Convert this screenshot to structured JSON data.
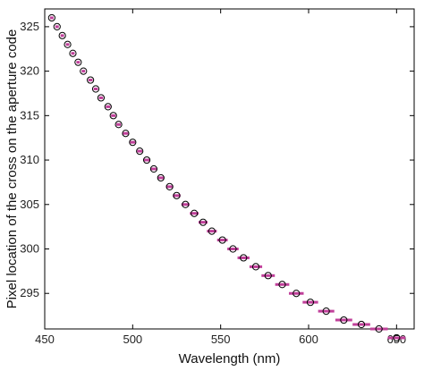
{
  "chart_data": {
    "type": "scatter",
    "xlabel": "Wavelength (nm)",
    "ylabel": "Pixel location of the cross on the aperture code",
    "xlim": [
      450,
      660
    ],
    "ylim": [
      291,
      327
    ],
    "xticks": [
      450,
      500,
      550,
      600,
      650
    ],
    "yticks": [
      295,
      300,
      305,
      310,
      315,
      320,
      325
    ],
    "grid": false,
    "marker_color": "#c0409a",
    "marker_edge_color": "#000000",
    "points": [
      {
        "x": 454,
        "y": 326,
        "xerr": 1
      },
      {
        "x": 457,
        "y": 325,
        "xerr": 1
      },
      {
        "x": 460,
        "y": 324,
        "xerr": 1
      },
      {
        "x": 463,
        "y": 323,
        "xerr": 1
      },
      {
        "x": 466,
        "y": 322,
        "xerr": 1
      },
      {
        "x": 469,
        "y": 321,
        "xerr": 1
      },
      {
        "x": 472,
        "y": 320,
        "xerr": 1
      },
      {
        "x": 476,
        "y": 319,
        "xerr": 1.2
      },
      {
        "x": 479,
        "y": 318,
        "xerr": 1.2
      },
      {
        "x": 482,
        "y": 317,
        "xerr": 1.2
      },
      {
        "x": 486,
        "y": 316,
        "xerr": 1.3
      },
      {
        "x": 489,
        "y": 315,
        "xerr": 1.3
      },
      {
        "x": 492,
        "y": 314,
        "xerr": 1.3
      },
      {
        "x": 496,
        "y": 313,
        "xerr": 1.5
      },
      {
        "x": 500,
        "y": 312,
        "xerr": 1.5
      },
      {
        "x": 504,
        "y": 311,
        "xerr": 1.5
      },
      {
        "x": 508,
        "y": 310,
        "xerr": 1.7
      },
      {
        "x": 512,
        "y": 309,
        "xerr": 1.8
      },
      {
        "x": 516,
        "y": 308,
        "xerr": 1.9
      },
      {
        "x": 521,
        "y": 307,
        "xerr": 2
      },
      {
        "x": 525,
        "y": 306,
        "xerr": 2.2
      },
      {
        "x": 530,
        "y": 305,
        "xerr": 2.3
      },
      {
        "x": 535,
        "y": 304,
        "xerr": 2.5
      },
      {
        "x": 540,
        "y": 303,
        "xerr": 2.6
      },
      {
        "x": 545,
        "y": 302,
        "xerr": 2.8
      },
      {
        "x": 551,
        "y": 301,
        "xerr": 3
      },
      {
        "x": 557,
        "y": 300,
        "xerr": 3.2
      },
      {
        "x": 563,
        "y": 299,
        "xerr": 3.4
      },
      {
        "x": 570,
        "y": 298,
        "xerr": 3.6
      },
      {
        "x": 577,
        "y": 297,
        "xerr": 3.8
      },
      {
        "x": 585,
        "y": 296,
        "xerr": 4
      },
      {
        "x": 593,
        "y": 295,
        "xerr": 4.2
      },
      {
        "x": 601,
        "y": 294,
        "xerr": 4.4
      },
      {
        "x": 610,
        "y": 293,
        "xerr": 4.6
      },
      {
        "x": 620,
        "y": 292,
        "xerr": 4.8
      },
      {
        "x": 630,
        "y": 291.5,
        "xerr": 5
      },
      {
        "x": 640,
        "y": 291,
        "xerr": 5
      },
      {
        "x": 650,
        "y": 290,
        "xerr": 5
      }
    ]
  }
}
